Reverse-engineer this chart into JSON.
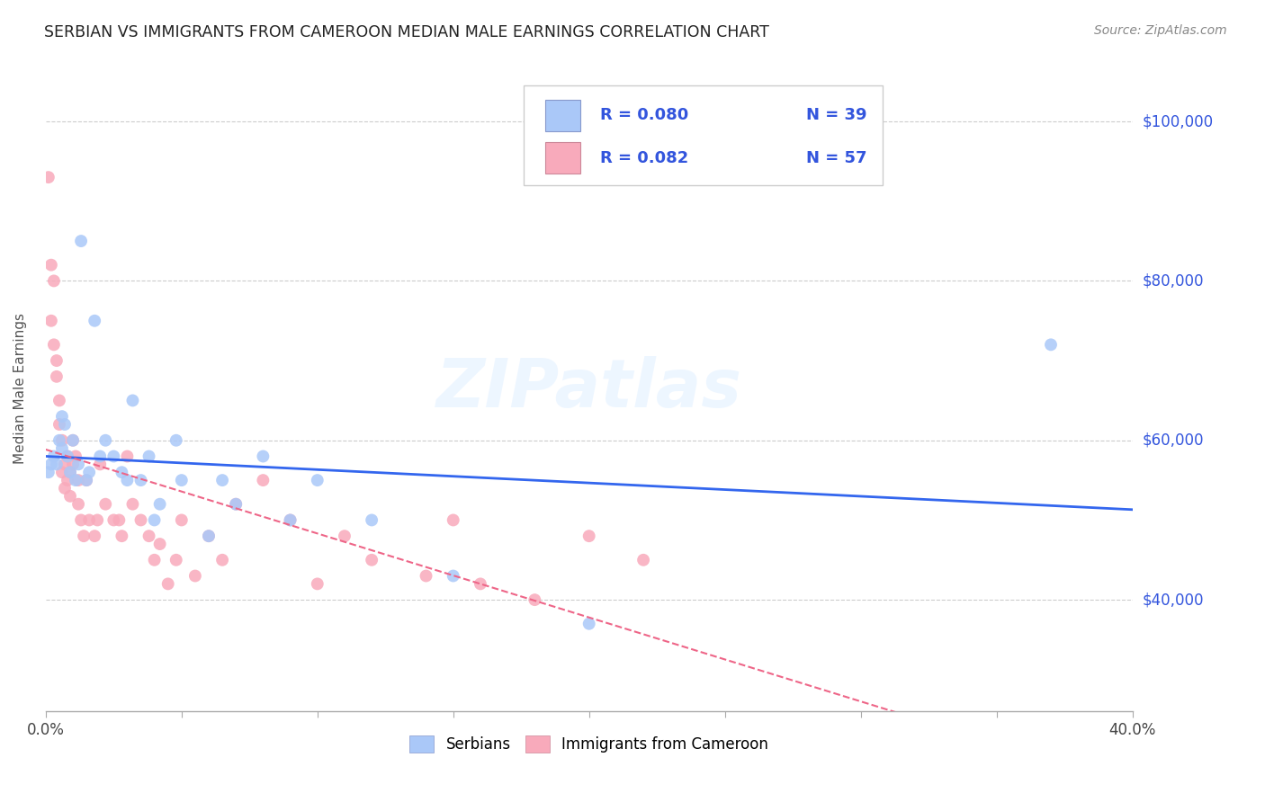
{
  "title": "SERBIAN VS IMMIGRANTS FROM CAMEROON MEDIAN MALE EARNINGS CORRELATION CHART",
  "source": "Source: ZipAtlas.com",
  "ylabel": "Median Male Earnings",
  "xlim": [
    0.0,
    0.4
  ],
  "ylim": [
    26000,
    107000
  ],
  "yticks": [
    40000,
    60000,
    80000,
    100000
  ],
  "ytick_labels": [
    "$40,000",
    "$60,000",
    "$80,000",
    "$100,000"
  ],
  "xticks": [
    0.0,
    0.05,
    0.1,
    0.15,
    0.2,
    0.25,
    0.3,
    0.35,
    0.4
  ],
  "xtick_labels": [
    "0.0%",
    "",
    "",
    "",
    "",
    "",
    "",
    "",
    "40.0%"
  ],
  "legend_r_serbian": "R = 0.080",
  "legend_n_serbian": "N = 39",
  "legend_r_cameroon": "R = 0.082",
  "legend_n_cameroon": "N = 57",
  "serbian_color": "#aac8f8",
  "cameroon_color": "#f8aabb",
  "serbian_line_color": "#3366ee",
  "cameroon_line_color": "#ee6688",
  "blue_text_color": "#3355dd",
  "watermark": "ZIPatlas",
  "serbian_x": [
    0.001,
    0.002,
    0.003,
    0.004,
    0.005,
    0.006,
    0.006,
    0.007,
    0.008,
    0.009,
    0.01,
    0.011,
    0.012,
    0.013,
    0.015,
    0.016,
    0.018,
    0.02,
    0.022,
    0.025,
    0.028,
    0.03,
    0.032,
    0.035,
    0.038,
    0.04,
    0.042,
    0.048,
    0.05,
    0.06,
    0.065,
    0.07,
    0.08,
    0.09,
    0.1,
    0.12,
    0.15,
    0.2,
    0.37
  ],
  "serbian_y": [
    56000,
    57000,
    58000,
    57000,
    60000,
    63000,
    59000,
    62000,
    58000,
    56000,
    60000,
    55000,
    57000,
    85000,
    55000,
    56000,
    75000,
    58000,
    60000,
    58000,
    56000,
    55000,
    65000,
    55000,
    58000,
    50000,
    52000,
    60000,
    55000,
    48000,
    55000,
    52000,
    58000,
    50000,
    55000,
    50000,
    43000,
    37000,
    72000
  ],
  "cameroon_x": [
    0.001,
    0.002,
    0.002,
    0.003,
    0.003,
    0.004,
    0.004,
    0.005,
    0.005,
    0.006,
    0.006,
    0.007,
    0.007,
    0.008,
    0.008,
    0.009,
    0.009,
    0.01,
    0.01,
    0.011,
    0.012,
    0.012,
    0.013,
    0.014,
    0.015,
    0.016,
    0.018,
    0.019,
    0.02,
    0.022,
    0.025,
    0.027,
    0.028,
    0.03,
    0.032,
    0.035,
    0.038,
    0.04,
    0.042,
    0.045,
    0.048,
    0.05,
    0.055,
    0.06,
    0.065,
    0.07,
    0.08,
    0.09,
    0.1,
    0.11,
    0.12,
    0.14,
    0.15,
    0.16,
    0.18,
    0.2,
    0.22
  ],
  "cameroon_y": [
    93000,
    82000,
    75000,
    80000,
    72000,
    70000,
    68000,
    65000,
    62000,
    60000,
    56000,
    57000,
    54000,
    55000,
    58000,
    53000,
    56000,
    57000,
    60000,
    58000,
    55000,
    52000,
    50000,
    48000,
    55000,
    50000,
    48000,
    50000,
    57000,
    52000,
    50000,
    50000,
    48000,
    58000,
    52000,
    50000,
    48000,
    45000,
    47000,
    42000,
    45000,
    50000,
    43000,
    48000,
    45000,
    52000,
    55000,
    50000,
    42000,
    48000,
    45000,
    43000,
    50000,
    42000,
    40000,
    48000,
    45000
  ]
}
